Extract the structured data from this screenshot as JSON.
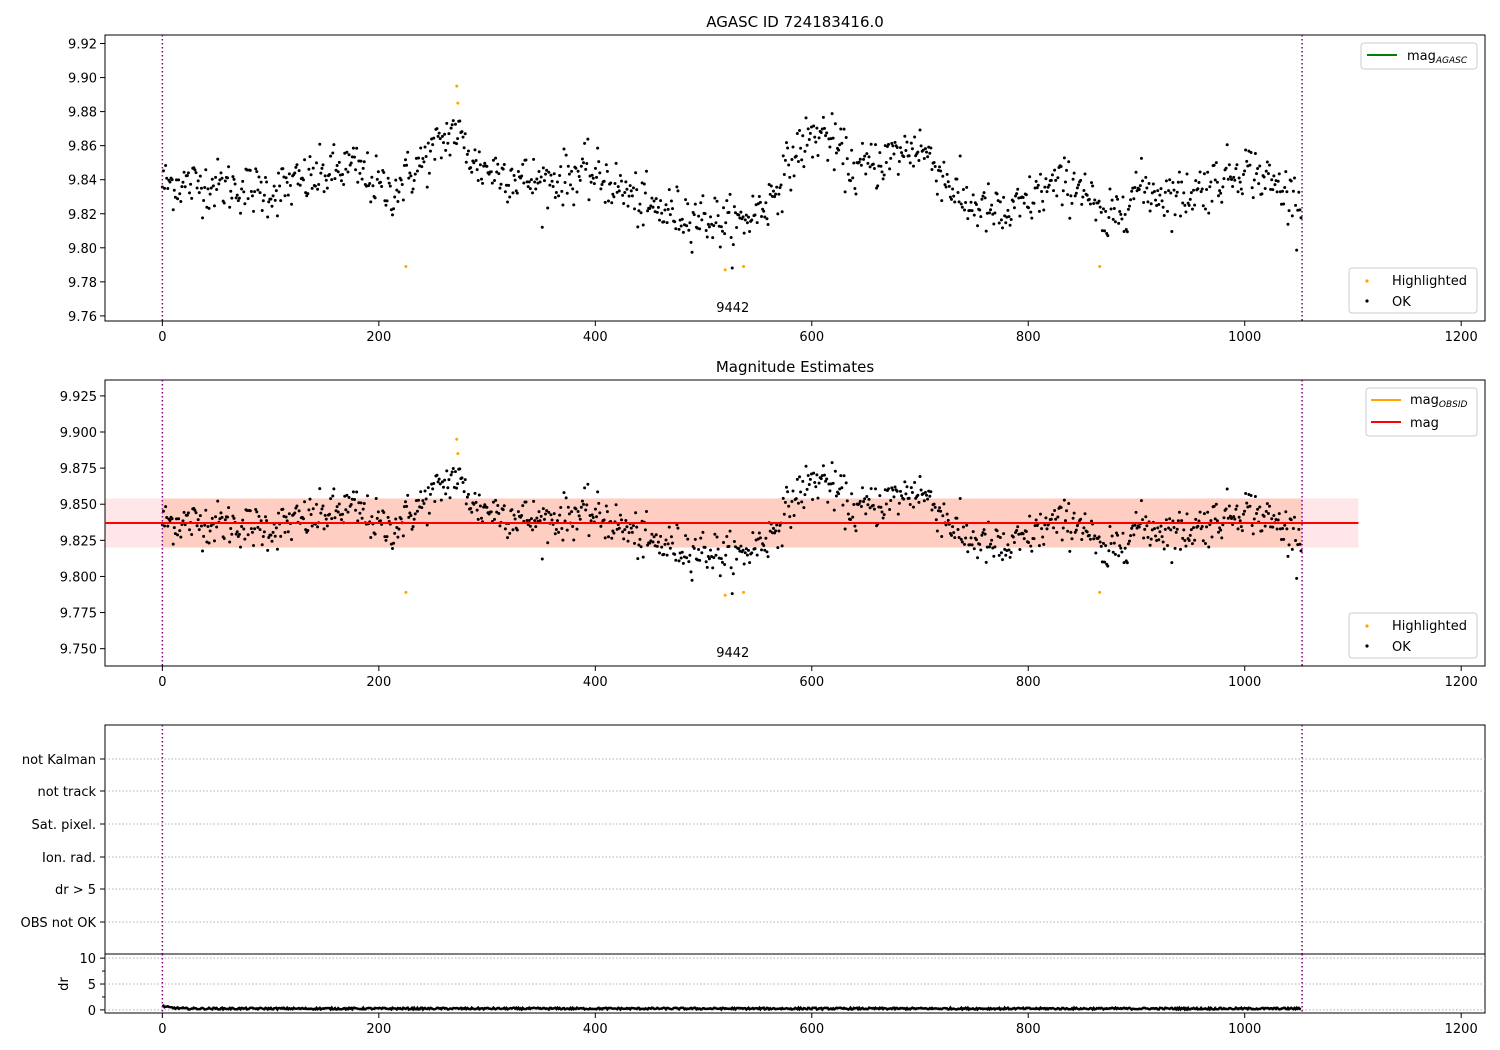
{
  "chart_data": [
    {
      "type": "scatter",
      "title": "AGASC ID 724183416.0",
      "xlim": [
        -53,
        1222
      ],
      "ylim": [
        9.757,
        9.925
      ],
      "xticks": [
        0,
        200,
        400,
        600,
        800,
        1000,
        1200
      ],
      "yticks": [
        9.76,
        9.78,
        9.8,
        9.82,
        9.84,
        9.86,
        9.88,
        9.9,
        9.92
      ],
      "ytick_labels": [
        "9.76",
        "9.78",
        "9.80",
        "9.82",
        "9.84",
        "9.86",
        "9.88",
        "9.90",
        "9.92"
      ],
      "vlines": [
        0,
        1053
      ],
      "obsid_label": "9442",
      "obsid_label_x": 527,
      "legend_top": [
        {
          "label": "mag",
          "subscript": "AGASC",
          "color": "#008000"
        }
      ],
      "legend_bottom": [
        {
          "label": "Highlighted",
          "color": "#ffa500"
        },
        {
          "label": "OK",
          "color": "#000000"
        }
      ],
      "highlighted": [
        [
          225,
          9.789
        ],
        [
          272,
          9.895
        ],
        [
          273,
          9.885
        ],
        [
          520,
          9.787
        ],
        [
          537,
          9.789
        ],
        [
          866,
          9.789
        ]
      ],
      "ok_series": {
        "points": 1050,
        "anchors": [
          [
            0,
            9.838
          ],
          [
            50,
            9.837
          ],
          [
            100,
            9.833
          ],
          [
            150,
            9.843
          ],
          [
            175,
            9.848
          ],
          [
            210,
            9.832
          ],
          [
            245,
            9.853
          ],
          [
            270,
            9.87
          ],
          [
            290,
            9.848
          ],
          [
            350,
            9.838
          ],
          [
            390,
            9.844
          ],
          [
            410,
            9.84
          ],
          [
            450,
            9.823
          ],
          [
            500,
            9.818
          ],
          [
            530,
            9.813
          ],
          [
            560,
            9.827
          ],
          [
            590,
            9.86
          ],
          [
            610,
            9.868
          ],
          [
            640,
            9.845
          ],
          [
            700,
            9.86
          ],
          [
            740,
            9.827
          ],
          [
            780,
            9.818
          ],
          [
            820,
            9.836
          ],
          [
            850,
            9.838
          ],
          [
            870,
            9.812
          ],
          [
            900,
            9.835
          ],
          [
            940,
            9.83
          ],
          [
            970,
            9.838
          ],
          [
            1000,
            9.848
          ],
          [
            1050,
            9.828
          ]
        ],
        "noise": 0.01
      }
    },
    {
      "type": "scatter",
      "title": "Magnitude Estimates",
      "xlim": [
        -53,
        1222
      ],
      "ylim": [
        9.738,
        9.936
      ],
      "xticks": [
        0,
        200,
        400,
        600,
        800,
        1000,
        1200
      ],
      "yticks": [
        9.75,
        9.775,
        9.8,
        9.825,
        9.85,
        9.875,
        9.9,
        9.925
      ],
      "ytick_labels": [
        "9.750",
        "9.775",
        "9.800",
        "9.825",
        "9.850",
        "9.875",
        "9.900",
        "9.925"
      ],
      "vlines": [
        0,
        1053
      ],
      "obsid_label": "9442",
      "obsid_label_x": 527,
      "mag": 9.837,
      "band_obsid": {
        "x": [
          0,
          1053
        ],
        "y": [
          9.82,
          9.854
        ],
        "color": "#ffa07a"
      },
      "band_mag": {
        "x": [
          -53,
          1105
        ],
        "y": [
          9.82,
          9.854
        ],
        "color": "#ffb6c1"
      },
      "legend_top": [
        {
          "label": "mag",
          "subscript": "OBSID",
          "color": "#ffa500"
        },
        {
          "label": "mag",
          "subscript": "",
          "color": "#ff0000"
        }
      ],
      "legend_bottom": [
        {
          "label": "Highlighted",
          "color": "#ffa500"
        },
        {
          "label": "OK",
          "color": "#000000"
        }
      ]
    },
    {
      "type": "scatter",
      "flags_labels": [
        "not Kalman",
        "not track",
        "Sat. pixel.",
        "Ion. rad.",
        "dr > 5",
        "OBS not OK"
      ],
      "xlim": [
        -53,
        1222
      ],
      "vlines": [
        0,
        1053
      ]
    },
    {
      "type": "line",
      "ylabel": "dr",
      "xlim": [
        -53,
        1222
      ],
      "ylim": [
        -0.6,
        10.8
      ],
      "yticks": [
        0,
        5,
        10
      ],
      "ytick_labels": [
        "0",
        "5",
        "10"
      ],
      "xticks": [
        0,
        200,
        400,
        600,
        800,
        1000,
        1200
      ],
      "vlines": [
        0,
        1053
      ],
      "dr_level": 0.25
    }
  ]
}
